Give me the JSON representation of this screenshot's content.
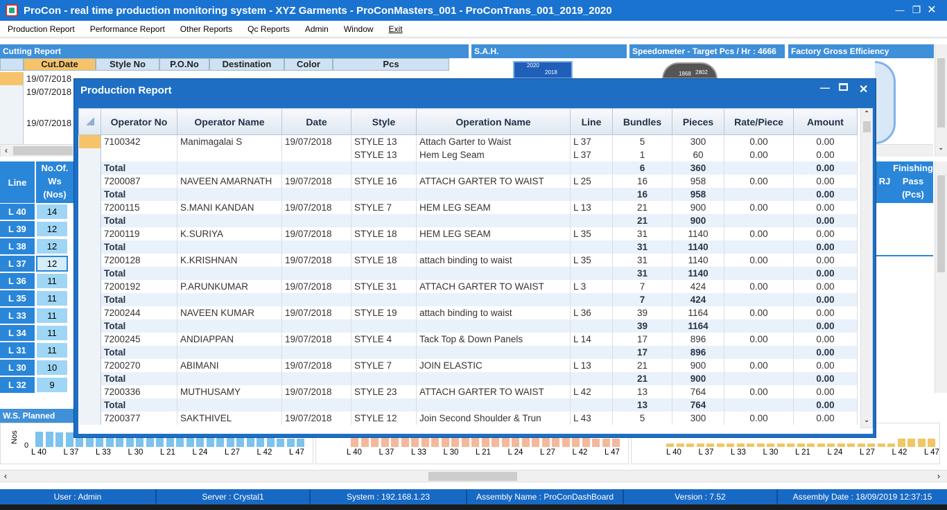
{
  "window": {
    "title": "ProCon - real time production monitoring system - XYZ Garments - ProConMasters_001 - ProConTrans_001_2019_2020"
  },
  "menu": [
    "Production Report",
    "Performance Report",
    "Other Reports",
    "Qc Reports",
    "Admin",
    "Window",
    "Exit"
  ],
  "panels": {
    "cutting": "Cutting Report",
    "sah": "S.A.H.",
    "speedometer": "Speedometer - Target Pcs / Hr : 4666",
    "efficiency": "Factory Gross Efficiency",
    "ws_planned": "W.S. Planned"
  },
  "cutting_report": {
    "columns": [
      "Cut.Date",
      "Style No",
      "P.O.No",
      "Destination",
      "Color",
      "Pcs"
    ],
    "dates": [
      "19/07/2018",
      "19/07/2018",
      "19/07/2018"
    ]
  },
  "gauges": {
    "sah_years": [
      "2020",
      "2018"
    ],
    "speed_ticks": [
      "1868",
      "2802"
    ]
  },
  "lines_panel": {
    "header_line": "Line",
    "header_ws": [
      "No.Of.",
      "Ws",
      "(Nos)"
    ],
    "rows": [
      {
        "line": "L 40",
        "ws": "14"
      },
      {
        "line": "L 39",
        "ws": "12"
      },
      {
        "line": "L 38",
        "ws": "12"
      },
      {
        "line": "L 37",
        "ws": "12"
      },
      {
        "line": "L 36",
        "ws": "11"
      },
      {
        "line": "L 35",
        "ws": "11"
      },
      {
        "line": "L 33",
        "ws": "11"
      },
      {
        "line": "L 34",
        "ws": "11"
      },
      {
        "line": "L 31",
        "ws": "11"
      },
      {
        "line": "L 30",
        "ws": "10"
      },
      {
        "line": "L 32",
        "ws": "9"
      }
    ]
  },
  "finishing": {
    "header": "Finishing",
    "pass": "Pass",
    "unit": "(Pcs)",
    "rj": "RJ"
  },
  "bottom_chart": {
    "ylabel": "Nos",
    "zero": "0",
    "labels": [
      "L 40",
      "L 37",
      "L 33",
      "L 30",
      "L 21",
      "L 24",
      "L 27",
      "L 42",
      "L 47"
    ]
  },
  "production_report": {
    "title": "Production Report",
    "columns": [
      "Operator No",
      "Operator Name",
      "Date",
      "Style",
      "Operation Name",
      "Line",
      "Bundles",
      "Pieces",
      "Rate/Piece",
      "Amount"
    ],
    "rows": [
      {
        "type": "row",
        "op": "7100342",
        "name": "Manimagalai S",
        "date": "19/07/2018",
        "style": "STYLE 13",
        "operation": "Attach Garter to Waist",
        "line": "L 37",
        "bundles": "5",
        "pieces": "300",
        "rate": "0.00",
        "amount": "0.00"
      },
      {
        "type": "sub",
        "style": "STYLE 13",
        "operation": "Hem Leg Seam",
        "line": "L 37",
        "bundles": "1",
        "pieces": "60",
        "rate": "0.00",
        "amount": "0.00"
      },
      {
        "type": "total",
        "label": "Total",
        "bundles": "6",
        "pieces": "360",
        "amount": "0.00"
      },
      {
        "type": "row",
        "op": "7200087",
        "name": "NAVEEN AMARNATH",
        "date": "19/07/2018",
        "style": "STYLE 16",
        "operation": "ATTACH GARTER TO WAIST",
        "line": "L 25",
        "bundles": "16",
        "pieces": "958",
        "rate": "0.00",
        "amount": "0.00"
      },
      {
        "type": "total",
        "label": "Total",
        "bundles": "16",
        "pieces": "958",
        "amount": "0.00"
      },
      {
        "type": "row",
        "op": "7200115",
        "name": "S.MANI KANDAN",
        "date": "19/07/2018",
        "style": "STYLE 7",
        "operation": "HEM LEG SEAM",
        "line": "L 13",
        "bundles": "21",
        "pieces": "900",
        "rate": "0.00",
        "amount": "0.00"
      },
      {
        "type": "total",
        "label": "Total",
        "bundles": "21",
        "pieces": "900",
        "amount": "0.00"
      },
      {
        "type": "row",
        "op": "7200119",
        "name": "K.SURIYA",
        "date": "19/07/2018",
        "style": "STYLE 18",
        "operation": "HEM LEG SEAM",
        "line": "L 35",
        "bundles": "31",
        "pieces": "1140",
        "rate": "0.00",
        "amount": "0.00"
      },
      {
        "type": "total",
        "label": "Total",
        "bundles": "31",
        "pieces": "1140",
        "amount": "0.00"
      },
      {
        "type": "row",
        "op": "7200128",
        "name": "K.KRISHNAN",
        "date": "19/07/2018",
        "style": "STYLE 18",
        "operation": "attach binding to waist",
        "line": "L 35",
        "bundles": "31",
        "pieces": "1140",
        "rate": "0.00",
        "amount": "0.00"
      },
      {
        "type": "total",
        "label": "Total",
        "bundles": "31",
        "pieces": "1140",
        "amount": "0.00"
      },
      {
        "type": "row",
        "op": "7200192",
        "name": "P.ARUNKUMAR",
        "date": "19/07/2018",
        "style": "STYLE 31",
        "operation": "ATTACH GARTER TO WAIST",
        "line": "L 3",
        "bundles": "7",
        "pieces": "424",
        "rate": "0.00",
        "amount": "0.00"
      },
      {
        "type": "total",
        "label": "Total",
        "bundles": "7",
        "pieces": "424",
        "amount": "0.00"
      },
      {
        "type": "row",
        "op": "7200244",
        "name": "NAVEEN KUMAR",
        "date": "19/07/2018",
        "style": "STYLE 19",
        "operation": "attach binding to waist",
        "line": "L 36",
        "bundles": "39",
        "pieces": "1164",
        "rate": "0.00",
        "amount": "0.00"
      },
      {
        "type": "total",
        "label": "Total",
        "bundles": "39",
        "pieces": "1164",
        "amount": "0.00"
      },
      {
        "type": "row",
        "op": "7200245",
        "name": "ANDIAPPAN",
        "date": "19/07/2018",
        "style": "STYLE 4",
        "operation": "Tack Top & Down Panels",
        "line": "L 14",
        "bundles": "17",
        "pieces": "896",
        "rate": "0.00",
        "amount": "0.00"
      },
      {
        "type": "total",
        "label": "Total",
        "bundles": "17",
        "pieces": "896",
        "amount": "0.00"
      },
      {
        "type": "row",
        "op": "7200270",
        "name": "ABIMANI",
        "date": "19/07/2018",
        "style": "STYLE 7",
        "operation": "JOIN ELASTIC",
        "line": "L 13",
        "bundles": "21",
        "pieces": "900",
        "rate": "0.00",
        "amount": "0.00"
      },
      {
        "type": "total",
        "label": "Total",
        "bundles": "21",
        "pieces": "900",
        "amount": "0.00"
      },
      {
        "type": "row",
        "op": "7200336",
        "name": "MUTHUSAMY",
        "date": "19/07/2018",
        "style": "STYLE 23",
        "operation": "ATTACH GARTER TO WAIST",
        "line": "L 42",
        "bundles": "13",
        "pieces": "764",
        "rate": "0.00",
        "amount": "0.00"
      },
      {
        "type": "total",
        "label": "Total",
        "bundles": "13",
        "pieces": "764",
        "amount": "0.00"
      },
      {
        "type": "row",
        "op": "7200377",
        "name": "SAKTHIVEL",
        "date": "19/07/2018",
        "style": "STYLE 12",
        "operation": "Join Second Shoulder & Trun",
        "line": "L 43",
        "bundles": "5",
        "pieces": "300",
        "rate": "0.00",
        "amount": "0.00"
      }
    ]
  },
  "status_bar": [
    "User : Admin",
    "Server : Crystal1",
    "System : 192.168.1.23",
    "Assembly Name : ProConDashBoard",
    "Version : 7.52",
    "Assembly Date : 18/09/2019 12:37:15"
  ],
  "colors": {
    "title_blue": "#1a73d0",
    "status_blue": "#1769c4",
    "line_button": "#2a86d9",
    "ws_cell": "#9fd6f5"
  }
}
